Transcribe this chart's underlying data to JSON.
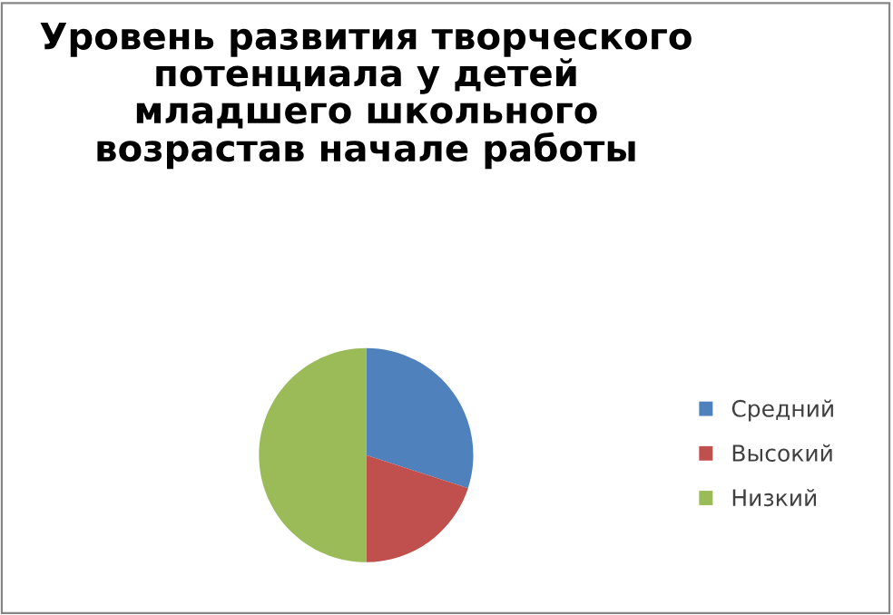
{
  "chart_data": {
    "type": "pie",
    "title": "Уровень развития творческого\nпотенциала у детей\nмладшего школьного\nвозрастав начале работы",
    "categories": [
      "Средний",
      "Высокий",
      "Низкий"
    ],
    "values": [
      30,
      20,
      50
    ],
    "colors": [
      "#4f81bd",
      "#c0504d",
      "#9bbb59"
    ],
    "legend": "right"
  }
}
